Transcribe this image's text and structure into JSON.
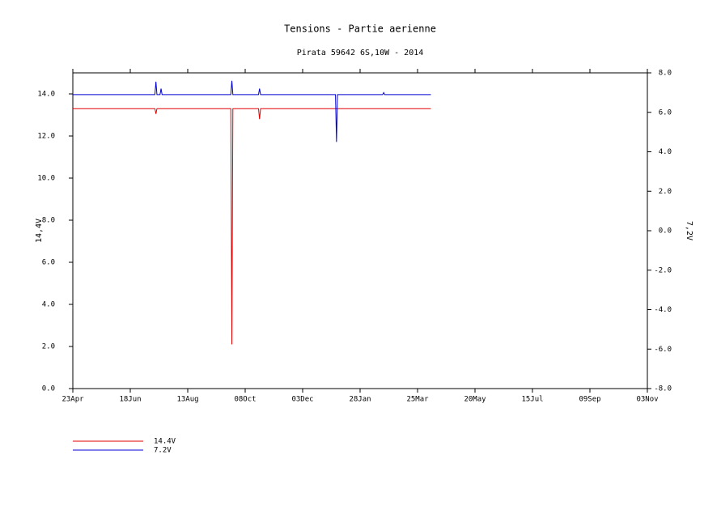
{
  "chart_data": {
    "type": "line",
    "title": "Tensions - Partie aerienne",
    "subtitle": "Pirata 59642 6S,10W - 2014",
    "ylabel": "14,4V",
    "y2label": "7,2V",
    "xlim": [
      0,
      560
    ],
    "xticks": [
      {
        "value": 0,
        "label": "23Apr"
      },
      {
        "value": 56,
        "label": "18Jun"
      },
      {
        "value": 112,
        "label": "13Aug"
      },
      {
        "value": 168,
        "label": "08Oct"
      },
      {
        "value": 224,
        "label": "03Dec"
      },
      {
        "value": 280,
        "label": "28Jan"
      },
      {
        "value": 336,
        "label": "25Mar"
      },
      {
        "value": 392,
        "label": "20May"
      },
      {
        "value": 448,
        "label": "15Jul"
      },
      {
        "value": 504,
        "label": "09Sep"
      },
      {
        "value": 560,
        "label": "03Nov"
      }
    ],
    "ylim": [
      0,
      15
    ],
    "yticks": [
      {
        "value": 0,
        "label": "0.0"
      },
      {
        "value": 2,
        "label": "2.0"
      },
      {
        "value": 4,
        "label": "4.0"
      },
      {
        "value": 6,
        "label": "6.0"
      },
      {
        "value": 8,
        "label": "8.0"
      },
      {
        "value": 10,
        "label": "10.0"
      },
      {
        "value": 12,
        "label": "12.0"
      },
      {
        "value": 14,
        "label": "14.0"
      }
    ],
    "y2lim": [
      -8,
      8
    ],
    "y2ticks": [
      {
        "value": -8,
        "label": "-8.0"
      },
      {
        "value": -6,
        "label": "-6.0"
      },
      {
        "value": -4,
        "label": "-4.0"
      },
      {
        "value": -2,
        "label": "-2.0"
      },
      {
        "value": 0,
        "label": "0.0"
      },
      {
        "value": 2,
        "label": "2.0"
      },
      {
        "value": 4,
        "label": "4.0"
      },
      {
        "value": 6,
        "label": "6.0"
      },
      {
        "value": 8,
        "label": "8.0"
      }
    ],
    "series": [
      {
        "name": "14.4V",
        "color": "#e00000",
        "x": [
          0,
          80,
          81,
          82,
          154,
          155,
          156,
          181,
          182,
          183,
          349
        ],
        "values": [
          13.3,
          13.3,
          13.05,
          13.3,
          13.3,
          2.1,
          13.3,
          13.3,
          12.8,
          13.3,
          13.3
        ]
      },
      {
        "name": "7.2V",
        "color": "#0000d0",
        "axis": "y2",
        "x": [
          0,
          80,
          81,
          82,
          85,
          86,
          87,
          154,
          155,
          156,
          181,
          182,
          183,
          256,
          257,
          258,
          302,
          303,
          304,
          349
        ],
        "values": [
          6.9,
          6.9,
          7.55,
          6.9,
          6.9,
          7.2,
          6.9,
          6.9,
          7.6,
          6.9,
          6.9,
          7.2,
          6.9,
          6.9,
          4.5,
          6.9,
          6.9,
          7.0,
          6.9,
          6.9
        ]
      }
    ]
  }
}
